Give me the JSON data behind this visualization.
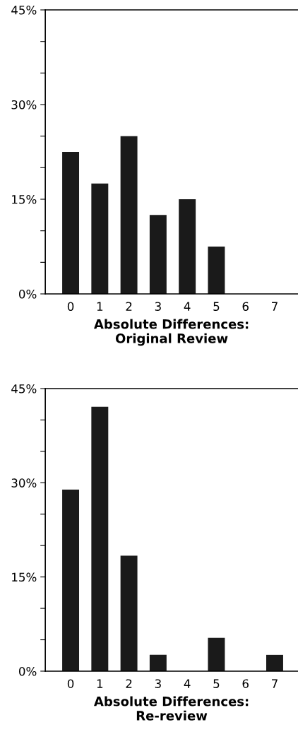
{
  "chart_data": [
    {
      "type": "bar",
      "xlabel": "Absolute Differences:\nOriginal Review",
      "categories": [
        "0",
        "1",
        "2",
        "3",
        "4",
        "5",
        "6",
        "7"
      ],
      "values": [
        22.5,
        17.5,
        25,
        12.5,
        15,
        7.5,
        0,
        0
      ],
      "color": "#1a1a1a",
      "ylim": [
        0,
        45
      ],
      "yticks": [
        {
          "value": 0,
          "label": "0%"
        },
        {
          "value": 5,
          "label": null
        },
        {
          "value": 10,
          "label": null
        },
        {
          "value": 15,
          "label": "15%"
        },
        {
          "value": 20,
          "label": null
        },
        {
          "value": 25,
          "label": null
        },
        {
          "value": 30,
          "label": "30%"
        },
        {
          "value": 35,
          "label": null
        },
        {
          "value": 40,
          "label": null
        },
        {
          "value": 45,
          "label": "45%"
        }
      ]
    },
    {
      "type": "bar",
      "xlabel": "Absolute Differences:\nRe-review",
      "categories": [
        "0",
        "1",
        "2",
        "3",
        "4",
        "5",
        "6",
        "7"
      ],
      "values": [
        28.9,
        42.1,
        18.4,
        2.6,
        0,
        5.3,
        0,
        2.6
      ],
      "color": "#1a1a1a",
      "ylim": [
        0,
        45
      ],
      "yticks": [
        {
          "value": 0,
          "label": "0%"
        },
        {
          "value": 5,
          "label": null
        },
        {
          "value": 10,
          "label": null
        },
        {
          "value": 15,
          "label": "15%"
        },
        {
          "value": 20,
          "label": null
        },
        {
          "value": 25,
          "label": null
        },
        {
          "value": 30,
          "label": "30%"
        },
        {
          "value": 35,
          "label": null
        },
        {
          "value": 40,
          "label": null
        },
        {
          "value": 45,
          "label": "45%"
        }
      ]
    }
  ]
}
